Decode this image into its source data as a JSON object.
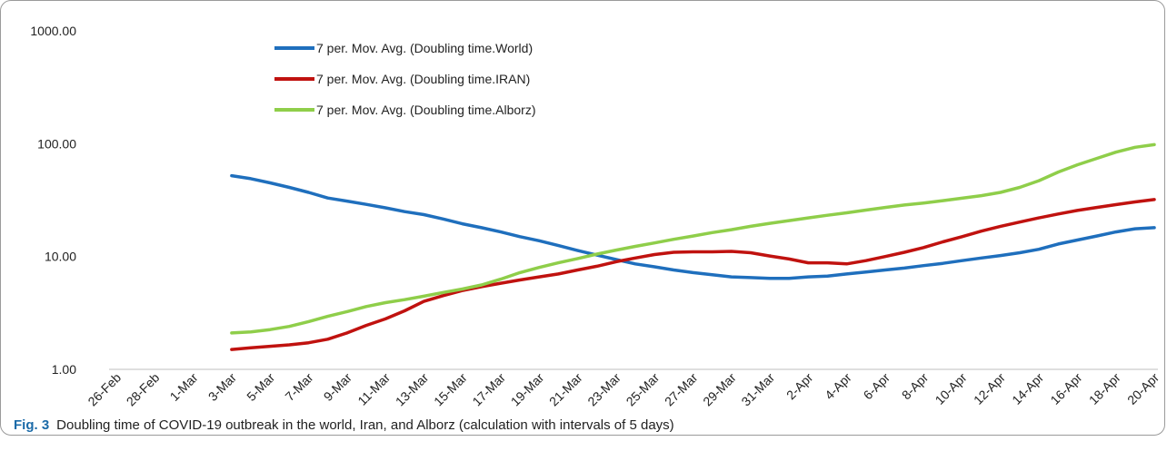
{
  "caption": {
    "label": "Fig. 3",
    "text": "Doubling time of COVID-19 outbreak in the world, Iran, and Alborz (calculation with intervals of 5 days)"
  },
  "chart_data": {
    "type": "line",
    "yscale": "log",
    "ylim": [
      1,
      1000
    ],
    "ytick_labels": [
      "1000.00",
      "100.00",
      "10.00",
      "1.00"
    ],
    "ytick_values": [
      1000,
      100,
      10,
      1
    ],
    "x_tick_labels": [
      "26-Feb",
      "28-Feb",
      "1-Mar",
      "3-Mar",
      "5-Mar",
      "7-Mar",
      "9-Mar",
      "11-Mar",
      "13-Mar",
      "15-Mar",
      "17-Mar",
      "19-Mar",
      "21-Mar",
      "23-Mar",
      "25-Mar",
      "27-Mar",
      "29-Mar",
      "31-Mar",
      "2-Apr",
      "4-Apr",
      "6-Apr",
      "8-Apr",
      "10-Apr",
      "12-Apr",
      "14-Apr",
      "16-Apr",
      "18-Apr",
      "20-Apr"
    ],
    "x": [
      "3-Mar",
      "4-Mar",
      "5-Mar",
      "6-Mar",
      "7-Mar",
      "8-Mar",
      "9-Mar",
      "10-Mar",
      "11-Mar",
      "12-Mar",
      "13-Mar",
      "14-Mar",
      "15-Mar",
      "16-Mar",
      "17-Mar",
      "18-Mar",
      "19-Mar",
      "20-Mar",
      "21-Mar",
      "22-Mar",
      "23-Mar",
      "24-Mar",
      "25-Mar",
      "26-Mar",
      "27-Mar",
      "28-Mar",
      "29-Mar",
      "30-Mar",
      "31-Mar",
      "1-Apr",
      "2-Apr",
      "3-Apr",
      "4-Apr",
      "5-Apr",
      "6-Apr",
      "7-Apr",
      "8-Apr",
      "9-Apr",
      "10-Apr",
      "11-Apr",
      "12-Apr",
      "13-Apr",
      "14-Apr",
      "15-Apr",
      "16-Apr",
      "17-Apr",
      "18-Apr",
      "19-Apr",
      "20-Apr"
    ],
    "legend_position": "top-left",
    "grid": false,
    "series": [
      {
        "name": "7 per. Mov. Avg. (Doubling time.World)",
        "color": "#1f6fbd",
        "values": [
          52,
          49,
          45,
          41,
          37,
          33,
          31,
          29,
          27,
          25,
          23.5,
          21.5,
          19.5,
          18,
          16.5,
          15,
          13.8,
          12.5,
          11.3,
          10.3,
          9.4,
          8.6,
          8.1,
          7.6,
          7.2,
          6.9,
          6.6,
          6.5,
          6.4,
          6.4,
          6.6,
          6.7,
          7.0,
          7.3,
          7.6,
          7.9,
          8.3,
          8.7,
          9.2,
          9.7,
          10.2,
          10.8,
          11.6,
          12.9,
          14.0,
          15.2,
          16.5,
          17.6,
          18.0
        ]
      },
      {
        "name": "7 per. Mov. Avg. (Doubling time.IRAN)",
        "color": "#c0120f",
        "values": [
          1.5,
          1.55,
          1.6,
          1.65,
          1.72,
          1.85,
          2.1,
          2.45,
          2.8,
          3.3,
          4.0,
          4.5,
          5.0,
          5.4,
          5.8,
          6.2,
          6.6,
          7.0,
          7.6,
          8.2,
          9.0,
          9.7,
          10.4,
          10.9,
          11.0,
          11.0,
          11.1,
          10.8,
          10.1,
          9.5,
          8.8,
          8.8,
          8.6,
          9.2,
          10.0,
          10.9,
          12.0,
          13.5,
          15.0,
          16.8,
          18.5,
          20.2,
          22.0,
          23.8,
          25.6,
          27.2,
          28.8,
          30.5,
          32.0
        ]
      },
      {
        "name": "7 per. Mov. Avg. (Doubling time.Alborz)",
        "color": "#8fce4a",
        "values": [
          2.1,
          2.15,
          2.25,
          2.4,
          2.65,
          2.95,
          3.25,
          3.6,
          3.9,
          4.15,
          4.45,
          4.8,
          5.15,
          5.6,
          6.3,
          7.2,
          8.0,
          8.8,
          9.6,
          10.5,
          11.4,
          12.3,
          13.2,
          14.2,
          15.2,
          16.3,
          17.3,
          18.5,
          19.7,
          20.8,
          22.0,
          23.2,
          24.4,
          25.8,
          27.2,
          28.6,
          29.8,
          31.3,
          32.9,
          34.6,
          37.0,
          41.0,
          47.0,
          56.0,
          65.0,
          74.0,
          84.0,
          93.0,
          98.0
        ]
      }
    ]
  }
}
